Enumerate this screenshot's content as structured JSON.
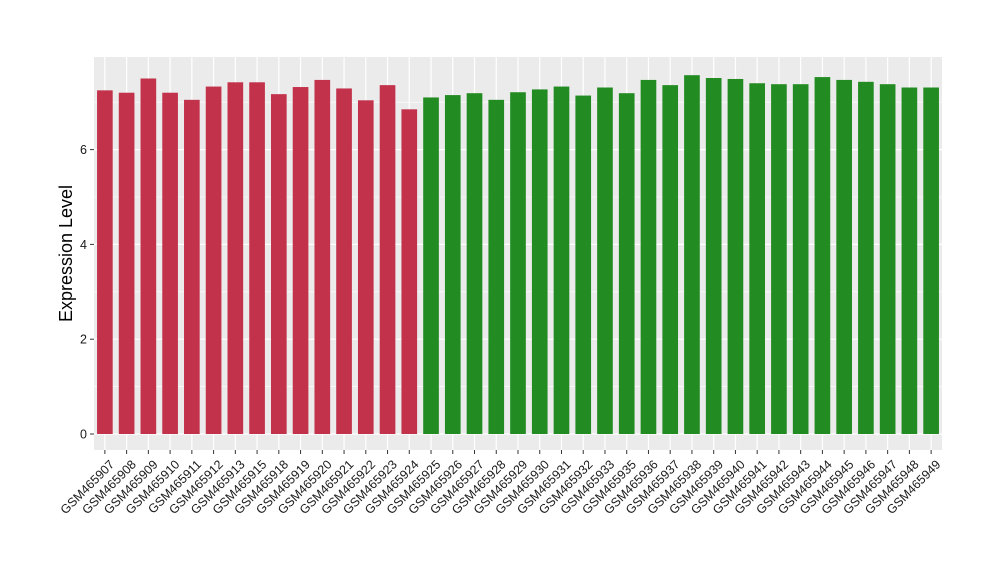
{
  "chart_data": {
    "type": "bar",
    "title": "",
    "xlabel": "",
    "ylabel": "Expression Level",
    "ylim": [
      0,
      7.85
    ],
    "yticks": [
      0,
      2,
      4,
      6
    ],
    "grid": true,
    "legend": "none",
    "colors": {
      "group1": "#c3324b",
      "group2": "#228b22",
      "panel": "#ebebeb",
      "gridline": "#ffffff"
    },
    "categories": [
      "GSM465907",
      "GSM465908",
      "GSM465909",
      "GSM465910",
      "GSM465911",
      "GSM465912",
      "GSM465913",
      "GSM465915",
      "GSM465918",
      "GSM465919",
      "GSM465920",
      "GSM465921",
      "GSM465922",
      "GSM465923",
      "GSM465924",
      "GSM465925",
      "GSM465926",
      "GSM465927",
      "GSM465928",
      "GSM465929",
      "GSM465930",
      "GSM465931",
      "GSM465932",
      "GSM465933",
      "GSM465935",
      "GSM465936",
      "GSM465937",
      "GSM465938",
      "GSM465939",
      "GSM465940",
      "GSM465941",
      "GSM465942",
      "GSM465943",
      "GSM465944",
      "GSM465945",
      "GSM465946",
      "GSM465947",
      "GSM465948",
      "GSM465949"
    ],
    "values": [
      7.25,
      7.2,
      7.5,
      7.2,
      7.05,
      7.33,
      7.42,
      7.42,
      7.17,
      7.32,
      7.47,
      7.29,
      7.04,
      7.36,
      6.85,
      7.1,
      7.15,
      7.19,
      7.05,
      7.21,
      7.27,
      7.33,
      7.14,
      7.31,
      7.19,
      7.47,
      7.36,
      7.57,
      7.51,
      7.49,
      7.4,
      7.38,
      7.38,
      7.53,
      7.47,
      7.43,
      7.38,
      7.31,
      7.31
    ],
    "bar_groups": [
      1,
      1,
      1,
      1,
      1,
      1,
      1,
      1,
      1,
      1,
      1,
      1,
      1,
      1,
      1,
      2,
      2,
      2,
      2,
      2,
      2,
      2,
      2,
      2,
      2,
      2,
      2,
      2,
      2,
      2,
      2,
      2,
      2,
      2,
      2,
      2,
      2,
      2,
      2
    ]
  }
}
